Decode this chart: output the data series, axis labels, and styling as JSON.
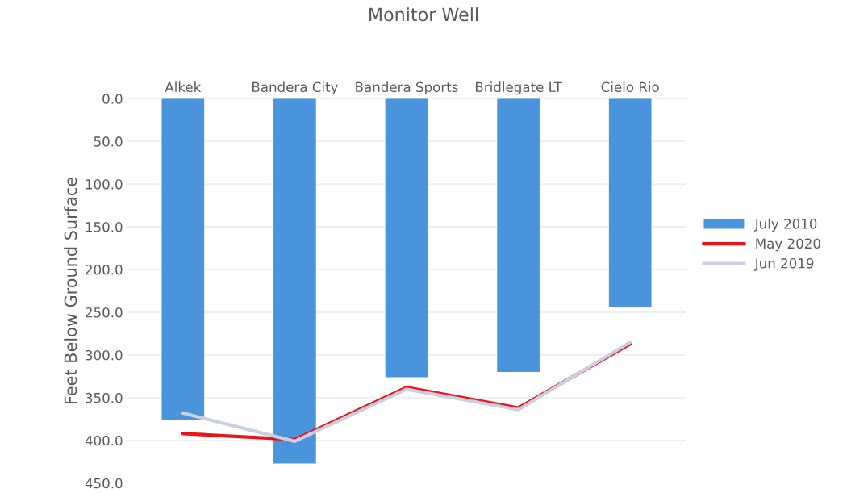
{
  "chart_data": {
    "type": "bar",
    "title": "Monitor Well",
    "ylabel": "Feet Below Ground Surface",
    "categories": [
      "Alkek",
      "Bandera City",
      "Bandera Sports",
      "Bridlegate LT",
      "Cielo Rio"
    ],
    "series": [
      {
        "name": "July 2010",
        "color": "#4a94dc",
        "values": [
          376,
          427,
          326,
          320,
          244
        ]
      },
      {
        "name": "May 2020",
        "type": "line",
        "color": "#e8141a",
        "values": [
          392,
          399,
          338,
          362,
          287
        ]
      },
      {
        "name": "Jun 2019",
        "type": "line",
        "color": "#c8d0e2",
        "values": [
          368,
          401,
          340,
          364,
          285
        ]
      }
    ],
    "ylim": [
      450,
      0
    ],
    "yticks": [
      {
        "value": 0,
        "label": "0.0"
      },
      {
        "value": 50,
        "label": "50.0"
      },
      {
        "value": 100,
        "label": "100.0"
      },
      {
        "value": 150,
        "label": "150.0"
      },
      {
        "value": 200,
        "label": "200.0"
      },
      {
        "value": 250,
        "label": "250.0"
      },
      {
        "value": 300,
        "label": "300.0"
      },
      {
        "value": 350,
        "label": "350.0"
      },
      {
        "value": 400,
        "label": "400.0"
      },
      {
        "value": 450,
        "label": "450.0"
      }
    ],
    "grid": "y",
    "legend": "right"
  }
}
